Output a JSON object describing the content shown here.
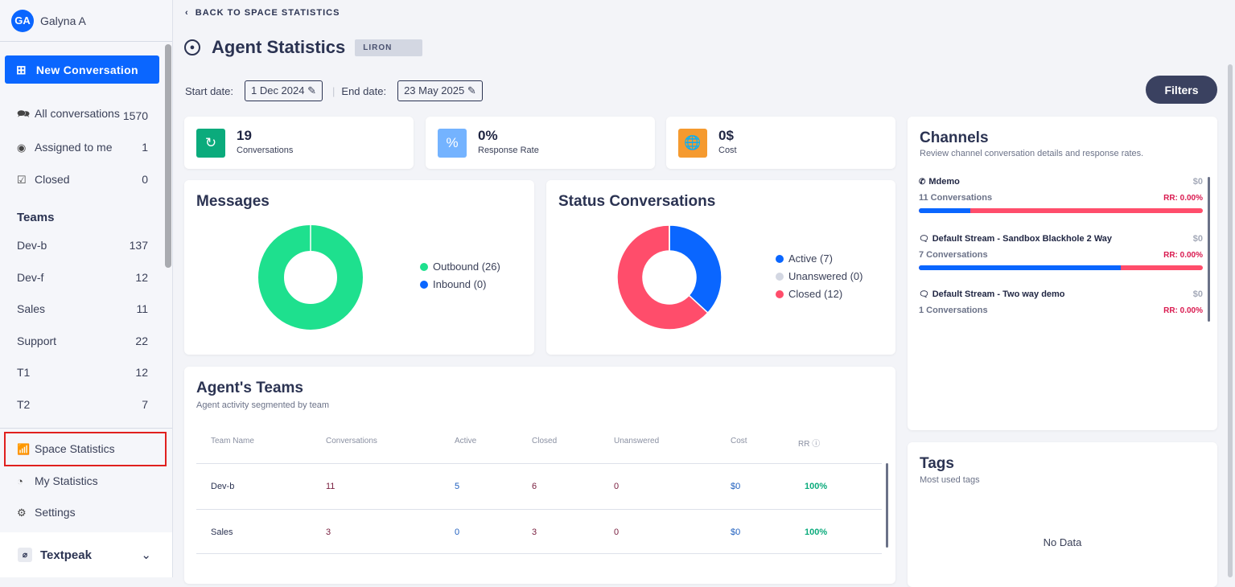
{
  "user": {
    "initials": "GA",
    "name": "Galyna A"
  },
  "new_conversation": "New Conversation",
  "nav": [
    {
      "label": "All conversations",
      "count": "1570",
      "icon": "chat-bubbles-icon"
    },
    {
      "label": "Assigned to me",
      "count": "1",
      "icon": "user-circle-icon"
    },
    {
      "label": "Closed",
      "count": "0",
      "icon": "chat-check-icon"
    }
  ],
  "teams_heading": "Teams",
  "teams": [
    {
      "label": "Dev-b",
      "count": "137"
    },
    {
      "label": "Dev-f",
      "count": "12"
    },
    {
      "label": "Sales",
      "count": "11"
    },
    {
      "label": "Support",
      "count": "22"
    },
    {
      "label": "T1",
      "count": "12"
    },
    {
      "label": "T2",
      "count": "7"
    }
  ],
  "bottom_nav": [
    {
      "label": "Space Statistics"
    },
    {
      "label": "My Statistics"
    },
    {
      "label": "Settings"
    }
  ],
  "workspace": "Textpeak",
  "back": "BACK TO SPACE STATISTICS",
  "title": "Agent Statistics",
  "agent_badge": "LIRON",
  "start_label": "Start date:",
  "start_date": "1 Dec 2024",
  "end_label": "End date:",
  "end_date": "23 May 2025",
  "filters": "Filters",
  "kpis": [
    {
      "value": "19",
      "label": "Conversations",
      "color": "#0bab7c"
    },
    {
      "value": "0%",
      "label": "Response Rate",
      "color": "#74b3ff"
    },
    {
      "value": "0$",
      "label": "Cost",
      "color": "#f59a2f"
    }
  ],
  "messages": {
    "title": "Messages",
    "items": [
      {
        "label": "Outbound (26)",
        "value": 26,
        "color": "#1ee08e"
      },
      {
        "label": "Inbound (0)",
        "value": 0,
        "color": "#0a66ff"
      }
    ]
  },
  "status": {
    "title": "Status Conversations",
    "items": [
      {
        "label": "Active (7)",
        "value": 7,
        "color": "#0a66ff"
      },
      {
        "label": "Unanswered (0)",
        "value": 0,
        "color": "#d3d7e2"
      },
      {
        "label": "Closed (12)",
        "value": 12,
        "color": "#ff4d6b"
      }
    ]
  },
  "agent_teams": {
    "title": "Agent's Teams",
    "subtitle": "Agent activity segmented by team",
    "columns": [
      "Team Name",
      "Conversations",
      "Active",
      "Closed",
      "Unanswered",
      "Cost",
      "RR"
    ],
    "rows": [
      [
        "Dev-b",
        "11",
        "5",
        "6",
        "0",
        "$0",
        "100%"
      ],
      [
        "Sales",
        "3",
        "0",
        "3",
        "0",
        "$0",
        "100%"
      ]
    ]
  },
  "channels": {
    "title": "Channels",
    "subtitle": "Review channel conversation details and response rates.",
    "items": [
      {
        "name": "Mdemo",
        "icon": "whatsapp-icon",
        "cost": "$0",
        "conversations": "11 Conversations",
        "rr": "RR: 0.00%",
        "blue_fraction": 0.18
      },
      {
        "name": "Default Stream - Sandbox Blackhole 2 Way",
        "icon": "sms-icon",
        "cost": "$0",
        "conversations": "7 Conversations",
        "rr": "RR: 0.00%",
        "blue_fraction": 0.71
      },
      {
        "name": "Default Stream - Two way demo",
        "icon": "sms-icon",
        "cost": "$0",
        "conversations": "1 Conversations",
        "rr": "RR: 0.00%"
      }
    ]
  },
  "tags": {
    "title": "Tags",
    "subtitle": "Most used tags",
    "empty": "No Data"
  }
}
